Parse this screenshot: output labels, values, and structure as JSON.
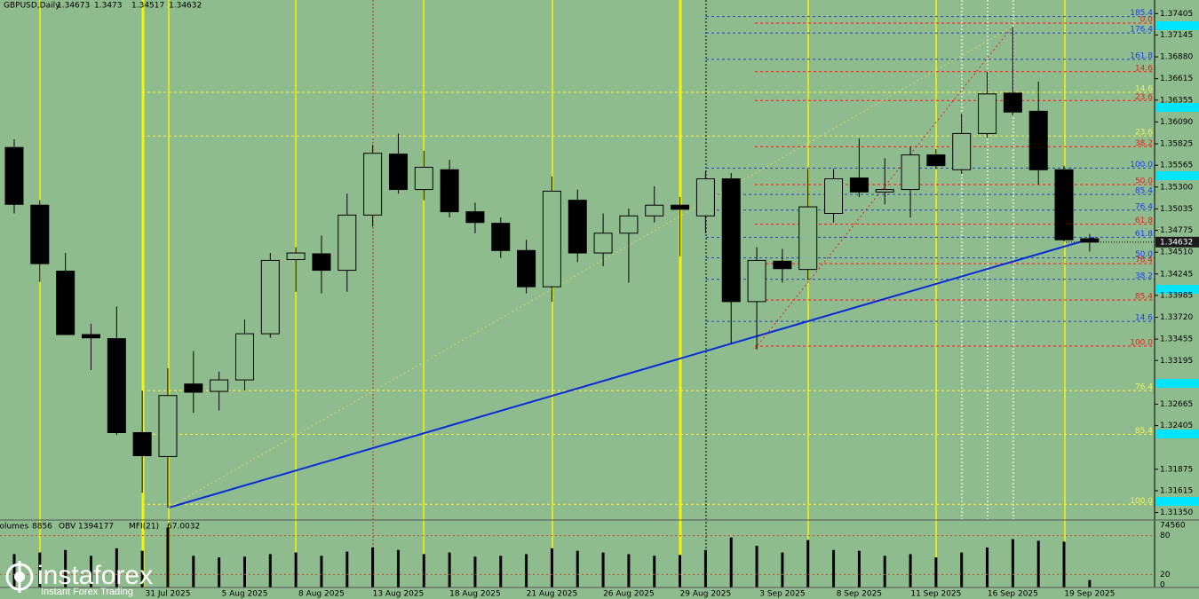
{
  "chart_data": {
    "type": "candlestick",
    "title": "GBPUSD,Daily",
    "categories": [
      null,
      null,
      null,
      null,
      null,
      null,
      "31 Jul 2025",
      null,
      null,
      "5 Aug 2025",
      null,
      null,
      "8 Aug 2025",
      null,
      null,
      "13 Aug 2025",
      null,
      null,
      "18 Aug 2025",
      null,
      null,
      "21 Aug 2025",
      null,
      null,
      "26 Aug 2025",
      null,
      null,
      "29 Aug 2025",
      null,
      null,
      "3 Sep 2025",
      null,
      null,
      "8 Sep 2025",
      null,
      null,
      "11 Sep 2025",
      null,
      null,
      "16 Sep 2025",
      null,
      null,
      "19 Sep 2025"
    ],
    "open": [
      1.3578,
      1.3508,
      1.3428,
      1.3351,
      1.3346,
      1.3232,
      1.3203,
      1.3291,
      1.3282,
      1.3296,
      1.3352,
      1.3442,
      1.3449,
      1.3429,
      1.3496,
      1.357,
      1.3527,
      1.3551,
      1.35,
      1.3486,
      1.3453,
      1.3409,
      1.3514,
      1.345,
      1.3474,
      1.3495,
      1.3508,
      1.3495,
      1.354,
      1.3391,
      1.344,
      1.343,
      1.3498,
      1.3541,
      1.3524,
      1.3527,
      1.3569,
      1.3551,
      1.3595,
      1.3644,
      1.3622,
      1.3551,
      1.34673
    ],
    "high": [
      1.3588,
      1.3514,
      1.345,
      1.3364,
      1.3385,
      1.3283,
      1.331,
      1.3331,
      1.3306,
      1.3369,
      1.345,
      1.3457,
      1.3471,
      1.3522,
      1.3581,
      1.3595,
      1.3574,
      1.3563,
      1.3511,
      1.3493,
      1.3466,
      1.3543,
      1.3527,
      1.3498,
      1.3504,
      1.3531,
      1.3518,
      1.3549,
      1.3547,
      1.3457,
      1.3455,
      1.3552,
      1.3552,
      1.3589,
      1.3565,
      1.3579,
      1.3576,
      1.3619,
      1.367,
      1.3724,
      1.3658,
      1.3556,
      1.3473
    ],
    "low": [
      1.3498,
      1.3415,
      1.3351,
      1.3308,
      1.3229,
      1.3159,
      1.3141,
      1.3256,
      1.3259,
      1.3283,
      1.3347,
      1.3403,
      1.3401,
      1.3403,
      1.3482,
      1.3522,
      1.3514,
      1.3493,
      1.3474,
      1.3444,
      1.3401,
      1.3391,
      1.3439,
      1.3434,
      1.3414,
      1.3487,
      1.3446,
      1.3474,
      1.334,
      1.3333,
      1.3414,
      1.3417,
      1.3487,
      1.3518,
      1.3509,
      1.3493,
      1.3552,
      1.3546,
      1.359,
      1.3617,
      1.3533,
      1.3464,
      1.34517
    ],
    "close": [
      1.3509,
      1.3437,
      1.3351,
      1.3347,
      1.3232,
      1.3204,
      1.3277,
      1.3281,
      1.3296,
      1.3352,
      1.3441,
      1.345,
      1.3429,
      1.3496,
      1.3571,
      1.3527,
      1.3554,
      1.35,
      1.3487,
      1.3453,
      1.3409,
      1.3525,
      1.345,
      1.3474,
      1.3495,
      1.3508,
      1.3503,
      1.354,
      1.3391,
      1.3441,
      1.3431,
      1.3506,
      1.354,
      1.3524,
      1.3527,
      1.3569,
      1.3556,
      1.3595,
      1.3643,
      1.3621,
      1.3551,
      1.3466,
      1.34632
    ],
    "ylim": [
      1.3127,
      1.3757
    ],
    "yticks": [
      1.37405,
      1.37145,
      {
        "value": 1.3688,
        "label": "1.36880"
      },
      1.36615,
      1.36355,
      {
        "value": 1.3609,
        "label": "1.36090"
      },
      1.35825,
      1.35565,
      {
        "value": 1.353,
        "label": "1.35300"
      },
      1.35035,
      1.34775,
      {
        "value": 1.3451,
        "label": "1.34510"
      },
      1.34245,
      1.33985,
      {
        "value": 1.3372,
        "label": "1.33720"
      },
      1.33455,
      1.33195,
      1.32665,
      1.32405,
      1.31875,
      1.31615,
      {
        "value": 1.3135,
        "label": "1.31350"
      }
    ],
    "fib_levels": [
      {
        "label": "185.4",
        "value": 1.3737,
        "color": "#1a3cff"
      },
      {
        "label": "0.0",
        "value": 1.3729,
        "color": "#e8201a"
      },
      {
        "label": "176.4",
        "value": 1.3717,
        "color": "#1a3cff"
      },
      {
        "label": "161.8",
        "value": 1.3685,
        "color": "#1a3cff"
      },
      {
        "label": "14.6",
        "value": 1.367,
        "color": "#e8201a"
      },
      {
        "label": "14.6",
        "value": 1.3645,
        "color": "#f2f25a"
      },
      {
        "label": "23.6",
        "value": 1.3635,
        "color": "#e8201a"
      },
      {
        "label": "23.6",
        "value": 1.3592,
        "color": "#f2f25a"
      },
      {
        "label": "38.2",
        "value": 1.3579,
        "color": "#e8201a"
      },
      {
        "label": "100.0",
        "value": 1.3553,
        "color": "#1a3cff"
      },
      {
        "label": "50.0",
        "value": 1.3533,
        "color": "#e8201a"
      },
      {
        "label": "85.4",
        "value": 1.3521,
        "color": "#1a3cff"
      },
      {
        "label": "76.4",
        "value": 1.3502,
        "color": "#1a3cff"
      },
      {
        "label": "61.8",
        "value": 1.3485,
        "color": "#e8201a"
      },
      {
        "label": "61.8",
        "value": 1.3469,
        "color": "#1a3cff"
      },
      {
        "label": "50.0",
        "value": 1.3444,
        "color": "#1a3cff"
      },
      {
        "label": "76.4",
        "value": 1.3437,
        "color": "#e8201a"
      },
      {
        "label": "38.2",
        "value": 1.3418,
        "color": "#1a3cff"
      },
      {
        "label": "85.4",
        "value": 1.3393,
        "color": "#e8201a"
      },
      {
        "label": "14.6",
        "value": 1.3367,
        "color": "#1a3cff"
      },
      {
        "label": "100.0",
        "value": 1.3337,
        "color": "#e8201a"
      },
      {
        "label": "76.4",
        "value": 1.3283,
        "color": "#f2f25a"
      },
      {
        "label": "85.4",
        "value": 1.323,
        "color": "#f2f25a"
      },
      {
        "label": "100.0",
        "value": 1.3145,
        "color": "#f2f25a"
      }
    ],
    "volume": {
      "name": "Volumes",
      "ylim": [
        0,
        74560
      ],
      "yticks": [
        74560,
        0
      ],
      "values": [
        40000,
        42000,
        45000,
        38000,
        47000,
        44000,
        72000,
        38000,
        36000,
        37000,
        40000,
        42000,
        38000,
        43000,
        48000,
        45000,
        40000,
        42000,
        37000,
        38000,
        40000,
        47000,
        44000,
        42000,
        40000,
        38000,
        39000,
        45000,
        60000,
        50000,
        42000,
        57000,
        45000,
        44000,
        38000,
        40000,
        36000,
        42000,
        48000,
        58000,
        56000,
        55000,
        8856
      ]
    },
    "indicators": [
      {
        "name": "OBV",
        "value": 1394177
      },
      {
        "name": "MFI(21)",
        "value": 67.0032,
        "ylim": [
          0,
          100
        ],
        "levels": [
          80,
          20
        ]
      }
    ]
  },
  "logo": {
    "name": "instaforex",
    "tagline": "Instant Forex Trading"
  }
}
